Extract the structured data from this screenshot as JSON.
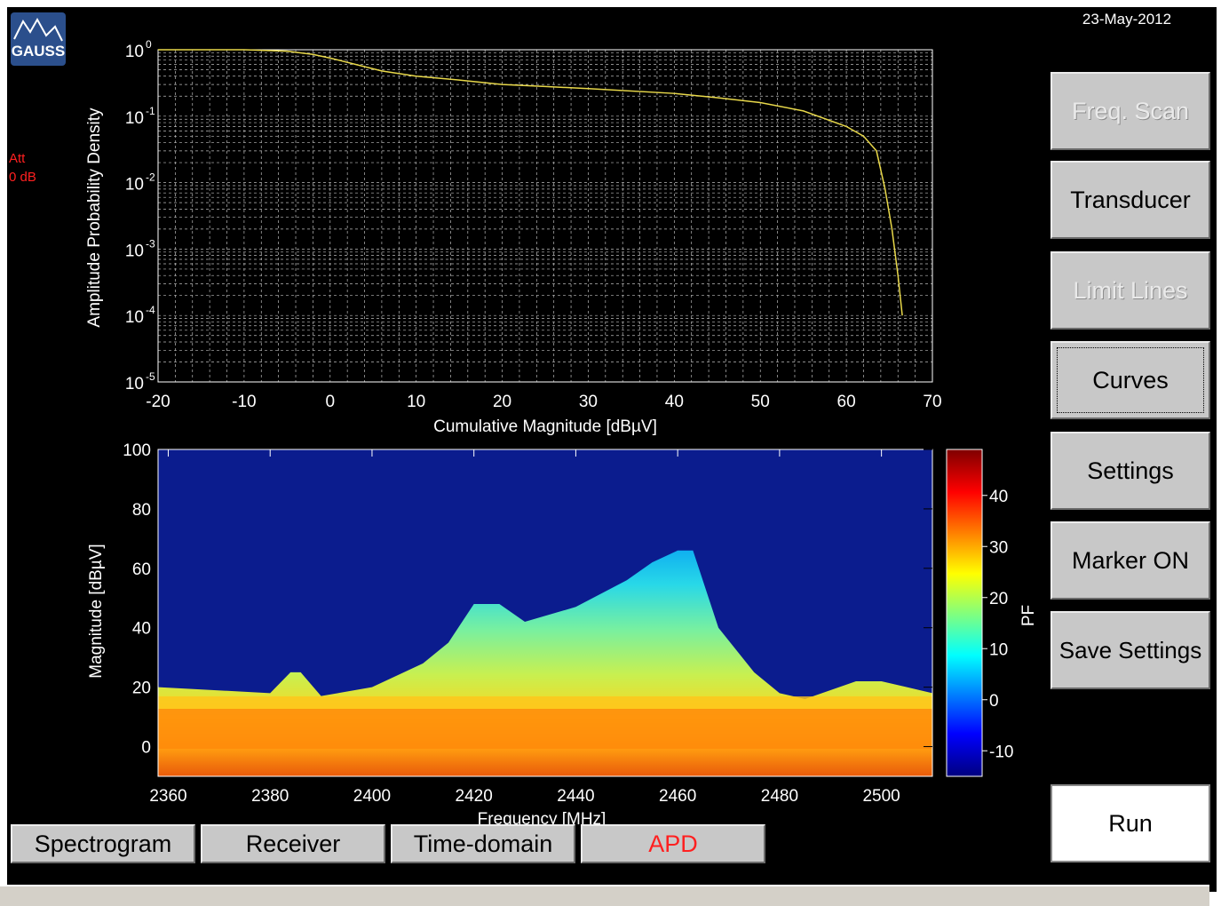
{
  "app": {
    "logo_text": "GAUSS",
    "attenuation_label": "Att",
    "attenuation_value": "0 dB",
    "date": "23-May-2012"
  },
  "sidebar": {
    "buttons": [
      {
        "label": "Freq. Scan",
        "enabled": false
      },
      {
        "label": "Transducer",
        "enabled": true
      },
      {
        "label": "Limit Lines",
        "enabled": false
      },
      {
        "label": "Curves",
        "enabled": true,
        "focused": true
      },
      {
        "label": "Settings",
        "enabled": true
      },
      {
        "label": "Marker ON",
        "enabled": true
      },
      {
        "label": "Save Settings",
        "enabled": true
      }
    ],
    "run_label": "Run"
  },
  "tabs": [
    {
      "label": "Spectrogram",
      "active": false
    },
    {
      "label": "Receiver",
      "active": false
    },
    {
      "label": "Time-domain",
      "active": false
    },
    {
      "label": "APD",
      "active": true
    }
  ],
  "colors": {
    "accent_red": "#ff2020",
    "curve": "#e8d84a",
    "button_face": "#c8c8c8"
  },
  "chart_data": [
    {
      "type": "line",
      "ylabel": "Amplitude Probability Density",
      "xlabel": "Cumulative Magnitude [dBµV]",
      "xlim": [
        -20,
        70
      ],
      "ylim": [
        1e-05,
        1
      ],
      "y_scale": "log",
      "x_ticks": [
        "-20",
        "-10",
        "0",
        "10",
        "20",
        "30",
        "40",
        "50",
        "60",
        "70"
      ],
      "y_ticks": [
        "10^-5",
        "10^-4",
        "10^-3",
        "10^-2",
        "10^-1",
        "10^0"
      ],
      "grid": true,
      "series": [
        {
          "x": [
            -20,
            -10,
            -5,
            -2,
            0,
            3,
            6,
            10,
            15,
            20,
            25,
            30,
            40,
            45,
            50,
            55,
            60,
            62,
            63.5,
            64.5,
            65.3,
            66,
            66.5
          ],
          "y": [
            1,
            1,
            0.95,
            0.85,
            0.75,
            0.6,
            0.48,
            0.4,
            0.35,
            0.3,
            0.28,
            0.26,
            0.22,
            0.19,
            0.16,
            0.12,
            0.07,
            0.05,
            0.03,
            0.008,
            0.002,
            0.0004,
            0.0001
          ]
        }
      ]
    },
    {
      "type": "heatmap",
      "xlabel": "Frequency [MHz]",
      "ylabel": "Magnitude [dBµV]",
      "xlim": [
        2358,
        2510
      ],
      "ylim": [
        -10,
        100
      ],
      "x_ticks": [
        "2360",
        "2380",
        "2400",
        "2420",
        "2440",
        "2460",
        "2480",
        "2500"
      ],
      "y_ticks": [
        "0",
        "20",
        "40",
        "60",
        "80",
        "100"
      ],
      "colorbar": {
        "label": "PF",
        "range": [
          -15,
          49
        ],
        "ticks": [
          "-10",
          "0",
          "10",
          "20",
          "30",
          "40"
        ]
      },
      "ridge": {
        "frequency_mhz": [
          2358,
          2380,
          2384,
          2386,
          2390,
          2400,
          2410,
          2415,
          2420,
          2425,
          2430,
          2440,
          2450,
          2455,
          2460,
          2463,
          2468,
          2475,
          2480,
          2485,
          2490,
          2495,
          2500,
          2510
        ],
        "magnitude_dbuv": [
          20,
          18,
          25,
          25,
          17,
          20,
          28,
          35,
          48,
          48,
          42,
          47,
          56,
          62,
          66,
          66,
          40,
          25,
          18,
          16,
          19,
          22,
          22,
          18
        ]
      }
    }
  ]
}
